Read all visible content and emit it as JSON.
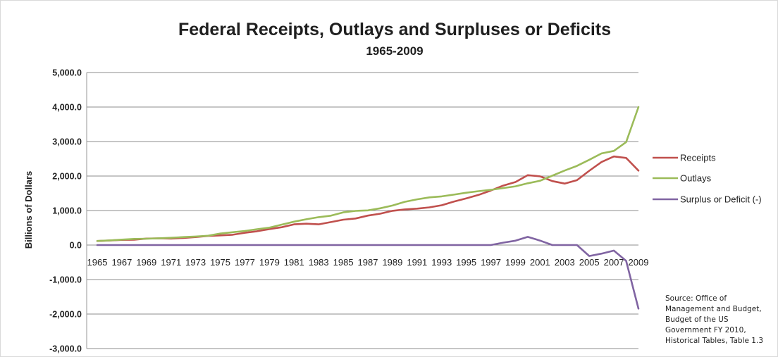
{
  "chart_data": {
    "type": "line",
    "title": "Federal Receipts, Outlays and Surpluses or Deficits",
    "subtitle": "1965-2009",
    "xlabel": "",
    "ylabel": "Billions of Dollars",
    "ylim": [
      -3000,
      5000
    ],
    "yticks": [
      5000,
      4000,
      3000,
      2000,
      1000,
      0,
      -1000,
      -2000,
      -3000
    ],
    "ytick_labels": [
      "5,000.0",
      "4,000.0",
      "3,000.0",
      "2,000.0",
      "1,000.0",
      "0.0",
      "-1,000.0",
      "-2,000.0",
      "-3,000.0"
    ],
    "grid": true,
    "legend_position": "right",
    "x": [
      1965,
      1966,
      1967,
      1968,
      1969,
      1970,
      1971,
      1972,
      1973,
      1974,
      1975,
      1976,
      1977,
      1978,
      1979,
      1980,
      1981,
      1982,
      1983,
      1984,
      1985,
      1986,
      1987,
      1988,
      1989,
      1990,
      1991,
      1992,
      1993,
      1994,
      1995,
      1996,
      1997,
      1998,
      1999,
      2000,
      2001,
      2002,
      2003,
      2004,
      2005,
      2006,
      2007,
      2008,
      2009
    ],
    "xtick_labels": [
      "1965",
      "1967",
      "1969",
      "1971",
      "1973",
      "1975",
      "1977",
      "1979",
      "1981",
      "1983",
      "1985",
      "1987",
      "1989",
      "1991",
      "1993",
      "1995",
      "1997",
      "1999",
      "2001",
      "2003",
      "2005",
      "2007",
      "2009"
    ],
    "series": [
      {
        "name": "Receipts",
        "color": "#c0504d",
        "values": [
          117,
          131,
          149,
          153,
          187,
          193,
          187,
          207,
          231,
          263,
          279,
          298,
          356,
          400,
          463,
          517,
          599,
          618,
          601,
          666,
          734,
          769,
          854,
          909,
          991,
          1032,
          1055,
          1091,
          1154,
          1259,
          1352,
          1453,
          1579,
          1722,
          1827,
          2025,
          1991,
          1853,
          1782,
          1880,
          2154,
          2407,
          2568,
          2524,
          2157
        ]
      },
      {
        "name": "Outlays",
        "color": "#9bbb59",
        "values": [
          118,
          135,
          158,
          178,
          184,
          196,
          210,
          231,
          246,
          269,
          332,
          372,
          409,
          459,
          504,
          591,
          678,
          746,
          808,
          852,
          946,
          990,
          1004,
          1065,
          1144,
          1253,
          1324,
          1382,
          1410,
          1462,
          1516,
          1561,
          1601,
          1652,
          1702,
          1789,
          1863,
          2011,
          2160,
          2293,
          2472,
          2655,
          2729,
          2983,
          4000
        ]
      },
      {
        "name": "Surplus or Deficit (-)",
        "color": "#8064a2",
        "values": [
          0,
          0,
          0,
          0,
          0,
          0,
          0,
          0,
          0,
          0,
          0,
          0,
          0,
          0,
          0,
          0,
          0,
          0,
          0,
          0,
          0,
          0,
          0,
          0,
          0,
          0,
          0,
          0,
          0,
          0,
          0,
          0,
          0,
          69,
          126,
          236,
          128,
          0,
          0,
          0,
          -318,
          -248,
          -161,
          -459,
          -1843
        ]
      }
    ]
  },
  "source_note": "Source: Office of\nManagement and Budget,\nBudget of the US\nGovernment FY 2010,\nHistorical Tables, Table 1.3"
}
